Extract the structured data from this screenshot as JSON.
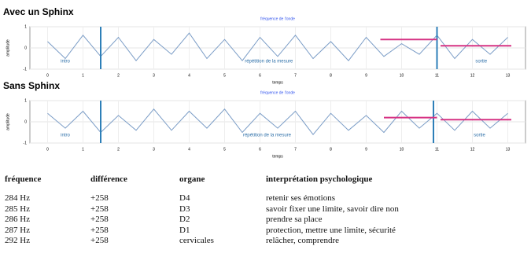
{
  "chart_data": [
    {
      "type": "line",
      "title": "Avec un Sphinx",
      "subtitle": "fréquence de l'onde",
      "ylabel": "amplitude",
      "xlabel": "temps",
      "xlim": [
        -0.5,
        13.5
      ],
      "xticks": [
        0,
        1,
        2,
        3,
        4,
        5,
        6,
        7,
        8,
        9,
        10,
        11,
        12,
        13
      ],
      "ylim": [
        -1,
        1
      ],
      "yticks": [
        -1,
        0,
        1
      ],
      "x": [
        0,
        0.5,
        1,
        1.5,
        2,
        2.5,
        3,
        3.5,
        4,
        4.5,
        5,
        5.5,
        6,
        6.5,
        7,
        7.5,
        8,
        8.5,
        9,
        9.5,
        10,
        10.5,
        11,
        11.5,
        12,
        12.5,
        13
      ],
      "series": [
        {
          "name": "signal",
          "color": "#7a9cc6",
          "values": [
            0.3,
            -0.5,
            0.6,
            -0.4,
            0.5,
            -0.6,
            0.4,
            -0.3,
            0.7,
            -0.5,
            0.4,
            -0.6,
            0.5,
            -0.4,
            0.6,
            -0.5,
            0.3,
            -0.6,
            0.5,
            -0.4,
            0.2,
            -0.3,
            0.6,
            -0.5,
            0.4,
            -0.3,
            0.5
          ]
        }
      ],
      "markers": [
        1.5,
        11
      ],
      "marker_color": "#2d7fb8",
      "regions": [
        "intro",
        "répétition de la mesure",
        "sortie"
      ],
      "segments": [
        {
          "x": [
            9.4,
            11
          ],
          "y": [
            0.4,
            0.4
          ]
        },
        {
          "x": [
            11.1,
            13.1
          ],
          "y": [
            0.1,
            0.1
          ]
        }
      ],
      "segment_color": "#d63384"
    },
    {
      "type": "line",
      "title": "Sans Sphinx",
      "subtitle": "fréquence de l'onde",
      "ylabel": "amplitude",
      "xlabel": "temps",
      "xlim": [
        -0.5,
        13.5
      ],
      "xticks": [
        0,
        1,
        2,
        3,
        4,
        5,
        6,
        7,
        8,
        9,
        10,
        11,
        12,
        13
      ],
      "ylim": [
        -1,
        1
      ],
      "yticks": [
        -1,
        0,
        1
      ],
      "x": [
        0,
        0.5,
        1,
        1.5,
        2,
        2.5,
        3,
        3.5,
        4,
        4.5,
        5,
        5.5,
        6,
        6.5,
        7,
        7.5,
        8,
        8.5,
        9,
        9.5,
        10,
        10.5,
        11,
        11.5,
        12,
        12.5,
        13
      ],
      "series": [
        {
          "name": "signal",
          "color": "#7a9cc6",
          "values": [
            0.4,
            -0.3,
            0.5,
            -0.5,
            0.3,
            -0.4,
            0.6,
            -0.4,
            0.5,
            -0.3,
            0.6,
            -0.5,
            0.4,
            -0.3,
            0.5,
            -0.6,
            0.4,
            -0.4,
            0.3,
            -0.5,
            0.5,
            -0.3,
            0.4,
            -0.4,
            0.5,
            -0.3,
            0.4
          ]
        }
      ],
      "markers": [
        1.5,
        10.9
      ],
      "marker_color": "#2d7fb8",
      "regions": [
        "intro",
        "répétition de la mesure",
        "sortie"
      ],
      "segments": [
        {
          "x": [
            9.5,
            11
          ],
          "y": [
            0.2,
            0.2
          ]
        },
        {
          "x": [
            11.1,
            13.1
          ],
          "y": [
            0.1,
            0.1
          ]
        }
      ],
      "segment_color": "#d63384"
    }
  ],
  "table": {
    "header": [
      "fréquence",
      "différence",
      "organe",
      "interprétation psychologique"
    ],
    "rows": [
      [
        "284 Hz",
        "+258",
        "D4",
        "retenir ses émotions"
      ],
      [
        "285 Hz",
        "+258",
        "D3",
        "savoir fixer une limite, savoir dire non"
      ],
      [
        "286 Hz",
        "+258",
        "D2",
        "prendre sa place"
      ],
      [
        "287 Hz",
        "+258",
        "D1",
        "protection, mettre une limite, sécurité"
      ],
      [
        "292 Hz",
        "+258",
        "cervicales",
        "relâcher, comprendre"
      ]
    ]
  }
}
